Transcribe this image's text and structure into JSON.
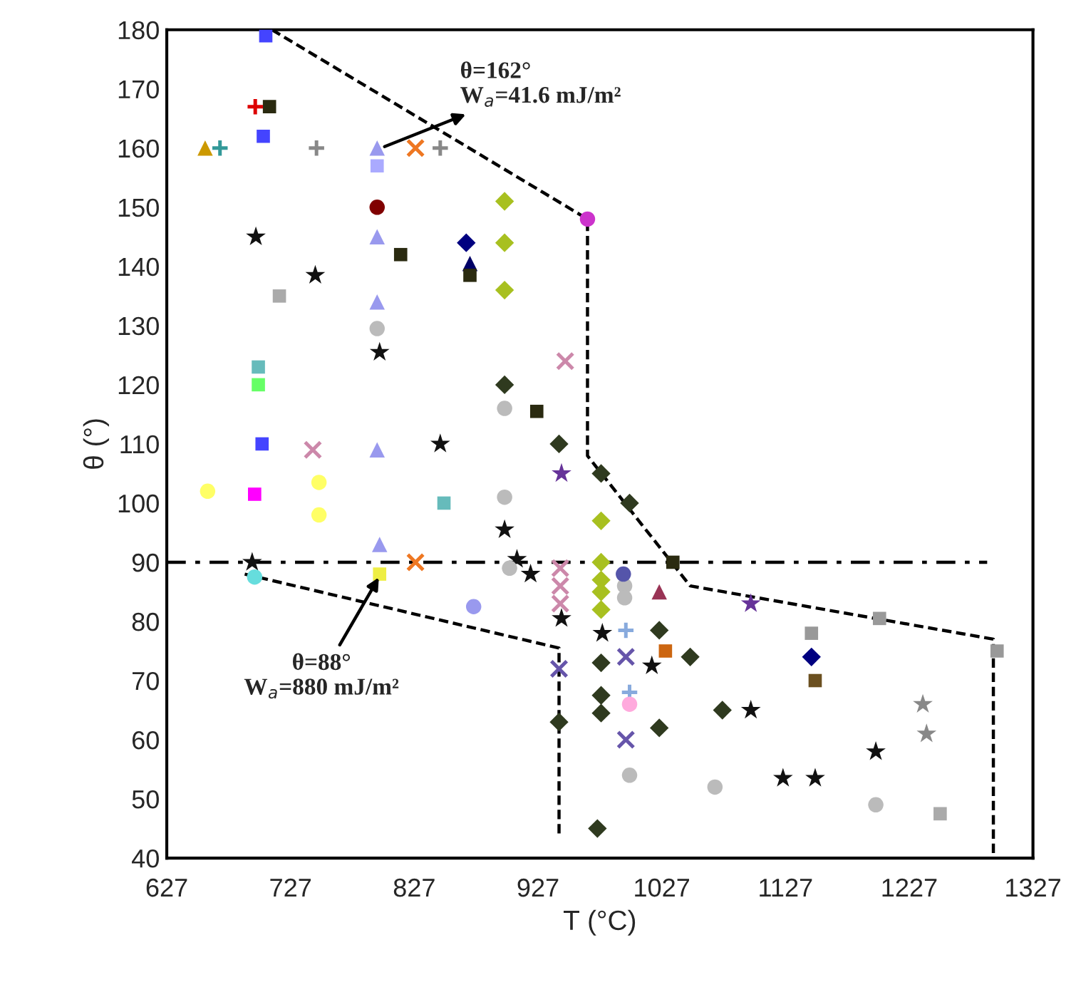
{
  "chart_data": {
    "type": "scatter",
    "xlabel": "T (°C)",
    "ylabel": "θ (°)",
    "xlim": [
      627,
      1327
    ],
    "xticks": [
      627,
      727,
      827,
      927,
      1027,
      1127,
      1227,
      1327
    ],
    "ylim": [
      40,
      180
    ],
    "yticks": [
      40,
      50,
      60,
      70,
      80,
      90,
      100,
      110,
      120,
      130,
      140,
      150,
      160,
      170,
      180
    ],
    "grid": false,
    "legend": false,
    "annotations": [
      {
        "text": "θ=162°\nW$_{a}$=41.6 mJ/m²",
        "x": 800,
        "y": 160
      },
      {
        "text": "θ=88°\nW$_{a}$=880 mJ/m²",
        "x": 800,
        "y": 88
      }
    ],
    "series": [
      {
        "color": "#111111",
        "marker": "star",
        "x": [
          699,
          747,
          799,
          848,
          900,
          910,
          921,
          946,
          979,
          1019,
          1099,
          1125,
          1151,
          1200,
          696
        ],
        "values": [
          145,
          138.5,
          125.5,
          110,
          95.5,
          90.5,
          88,
          80.5,
          78,
          72.5,
          65,
          53.5,
          53.5,
          58,
          90
        ]
      },
      {
        "color": "#2f3a1f",
        "marker": "diamond",
        "x": [
          944,
          978,
          1001,
          978,
          978,
          978,
          944,
          975,
          1025,
          1025,
          1050,
          1076,
          900
        ],
        "values": [
          110,
          105,
          100,
          73,
          67.5,
          64.5,
          63,
          45,
          78.5,
          62,
          74,
          65,
          120
        ]
      },
      {
        "color": "#a8c020",
        "marker": "diamond",
        "x": [
          900,
          900,
          900,
          978,
          978,
          978,
          978,
          978
        ],
        "values": [
          151,
          144,
          136,
          97,
          90,
          87,
          85,
          82
        ]
      },
      {
        "color": "#9999ee",
        "marker": "triangle",
        "x": [
          797,
          797,
          797,
          797,
          799
        ],
        "values": [
          160,
          145,
          134,
          109,
          93
        ]
      },
      {
        "color": "#aaaaff",
        "marker": "square",
        "x": [
          797
        ],
        "values": [
          157
        ]
      },
      {
        "color": "#000080",
        "marker": "diamond",
        "x": [
          869,
          1148
        ],
        "values": [
          144,
          74
        ]
      },
      {
        "color": "#000066",
        "marker": "triangle",
        "x": [
          872
        ],
        "values": [
          140.5
        ]
      },
      {
        "color": "#2a2a10",
        "marker": "square",
        "x": [
          710,
          816,
          872,
          926,
          1036
        ],
        "values": [
          167,
          142,
          138.5,
          115.5,
          90
        ]
      },
      {
        "color": "#6b5020",
        "marker": "square",
        "x": [
          1151
        ],
        "values": [
          70
        ]
      },
      {
        "color": "#999999",
        "marker": "square",
        "x": [
          1148,
          1203,
          1298
        ],
        "values": [
          78,
          80.5,
          75
        ]
      },
      {
        "color": "#66bbbb",
        "marker": "square",
        "x": [
          701,
          851
        ],
        "values": [
          123,
          100
        ]
      },
      {
        "color": "#4444ff",
        "marker": "square",
        "x": [
          707,
          705,
          704
        ],
        "values": [
          179,
          162,
          110
        ]
      },
      {
        "color": "#dd0000",
        "marker": "plus",
        "x": [
          698.5
        ],
        "values": [
          167
        ]
      },
      {
        "color": "#cc9900",
        "marker": "triangle",
        "x": [
          658
        ],
        "values": [
          160
        ]
      },
      {
        "color": "#339999",
        "marker": "plus",
        "x": [
          670
        ],
        "values": [
          160
        ]
      },
      {
        "color": "#888888",
        "marker": "plus",
        "x": [
          748,
          848
        ],
        "values": [
          160,
          160
        ]
      },
      {
        "color": "#ee7722",
        "marker": "cross",
        "x": [
          828,
          828
        ],
        "values": [
          160,
          90
        ]
      },
      {
        "color": "#800000",
        "marker": "circle",
        "x": [
          797
        ],
        "values": [
          150
        ]
      },
      {
        "color": "#cc33cc",
        "marker": "circle",
        "x": [
          967
        ],
        "values": [
          148
        ]
      },
      {
        "color": "#cc88aa",
        "marker": "cross",
        "x": [
          949,
          745,
          945,
          945,
          945
        ],
        "values": [
          124,
          109,
          89,
          86,
          83
        ]
      },
      {
        "color": "#663399",
        "marker": "star",
        "x": [
          946,
          1099
        ],
        "values": [
          105,
          83
        ]
      },
      {
        "color": "#6655aa",
        "marker": "cross",
        "x": [
          944,
          998,
          998
        ],
        "values": [
          72,
          74,
          60
        ]
      },
      {
        "color": "#aaaaaa",
        "marker": "square",
        "x": [
          718,
          1252
        ],
        "values": [
          135,
          47.5
        ]
      },
      {
        "color": "#bbbbbb",
        "marker": "circle",
        "x": [
          797,
          900,
          900,
          904,
          997,
          997,
          1001,
          1070,
          1200
        ],
        "values": [
          129.5,
          116,
          101,
          89,
          86,
          84,
          54,
          52,
          49
        ]
      },
      {
        "color": "#66ff66",
        "marker": "square",
        "x": [
          701
        ],
        "values": [
          120
        ]
      },
      {
        "color": "#ffff66",
        "marker": "circle",
        "x": [
          660,
          750,
          750
        ],
        "values": [
          102,
          103.5,
          98
        ]
      },
      {
        "color": "#ff00ff",
        "marker": "square",
        "x": [
          698
        ],
        "values": [
          101.5
        ]
      },
      {
        "color": "#66dddd",
        "marker": "circle",
        "x": [
          698
        ],
        "values": [
          87.5
        ]
      },
      {
        "color": "#eeee44",
        "marker": "square",
        "x": [
          799
        ],
        "values": [
          88
        ]
      },
      {
        "color": "#9999ee",
        "marker": "circle",
        "x": [
          875
        ],
        "values": [
          82.5
        ]
      },
      {
        "color": "#88aadd",
        "marker": "plus",
        "x": [
          998,
          1001
        ],
        "values": [
          78.5,
          68
        ]
      },
      {
        "color": "#993355",
        "marker": "triangle",
        "x": [
          1025
        ],
        "values": [
          85
        ]
      },
      {
        "color": "#cc6611",
        "marker": "square",
        "x": [
          1030
        ],
        "values": [
          75
        ]
      },
      {
        "color": "#888888",
        "marker": "star",
        "x": [
          1238,
          1241
        ],
        "values": [
          66,
          61
        ]
      },
      {
        "color": "#ffaadd",
        "marker": "circle",
        "x": [
          1001
        ],
        "values": [
          66
        ]
      },
      {
        "color": "#5555aa",
        "marker": "circle",
        "x": [
          996
        ],
        "values": [
          88
        ]
      },
      {
        "type": "line",
        "color": "#000000",
        "line_style": "dashed",
        "marker": "none",
        "x": [
          712,
          967,
          967,
          1050,
          1295,
          1295
        ],
        "values": [
          180,
          148,
          108,
          86,
          77,
          40
        ]
      },
      {
        "type": "line",
        "color": "#000000",
        "line_style": "dashed",
        "marker": "none",
        "x": [
          690,
          944,
          944
        ],
        "values": [
          88,
          75.5,
          44
        ]
      },
      {
        "type": "line",
        "color": "#000000",
        "line_style": "dashdot",
        "marker": "none",
        "x": [
          627,
          1290
        ],
        "values": [
          90,
          90
        ]
      }
    ]
  }
}
